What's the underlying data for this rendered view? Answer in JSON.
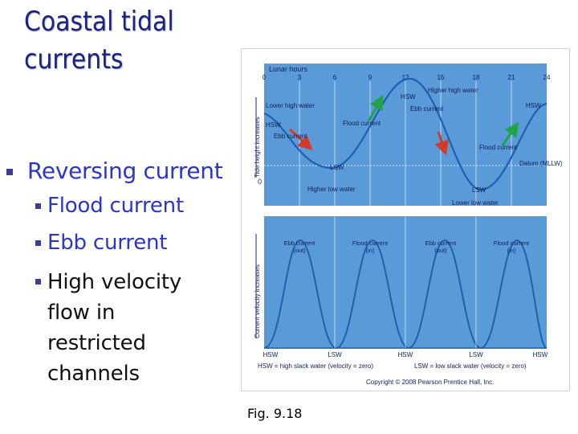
{
  "slide": {
    "title": "Coastal tidal currents",
    "bullets": [
      {
        "text": "Reversing current",
        "sub": [
          {
            "text": "Flood current",
            "color": "#2b35c8"
          },
          {
            "text": "Ebb current",
            "color": "#2b35c8"
          },
          {
            "text": "High velocity flow in restricted channels",
            "color": "#111111"
          }
        ]
      }
    ],
    "caption": "Fig. 9.18"
  },
  "figure": {
    "top": {
      "lunar_hours_label": "Lunar hours",
      "hours": [
        "0",
        "3",
        "6",
        "9",
        "12",
        "15",
        "18",
        "21",
        "24"
      ],
      "y_axis_label": "Tide height increases",
      "zero_label": "0",
      "labels": {
        "lower_high_water": "Lower high water",
        "higher_high_water": "Higher high water",
        "hsw": "HSW",
        "lsw": "LSW",
        "ebb_current": "Ebb current",
        "flood_current": "Flood current",
        "datum": "Datum (MLLW)",
        "higher_low_water": "Higher low water",
        "lower_low_water": "Lower low water"
      }
    },
    "bottom": {
      "y_axis_label": "Current velocity increases",
      "phases": [
        {
          "name": "Ebb current",
          "dir": "(out)"
        },
        {
          "name": "Flood current",
          "dir": "(in)"
        },
        {
          "name": "Ebb current",
          "dir": "(out)"
        },
        {
          "name": "Flood current",
          "dir": "(in)"
        }
      ],
      "bottom_labels": [
        "HSW",
        "LSW",
        "HSW",
        "LSW",
        "HSW"
      ],
      "legend_hsw": "HSW = high slack water (velocity = zero)",
      "legend_lsw": "LSW = low slack water (velocity = zero)",
      "copyright": "Copyright © 2008 Pearson Prentice Hall, Inc."
    },
    "colors": {
      "panel": "#5b9ad8",
      "curve": "#1f5fb0",
      "flood_arrow": "#22a34a",
      "ebb_arrow": "#d23a2a"
    }
  }
}
